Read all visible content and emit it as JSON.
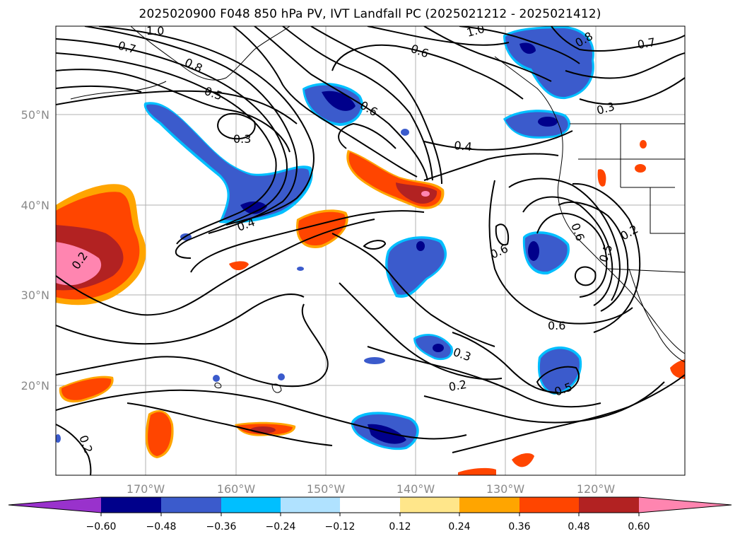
{
  "title": "2025020900 F048 850 hPa PV, IVT Landfall PC (2025021212 - 2025021412)",
  "map": {
    "lon_ticks": [
      "170°W",
      "160°W",
      "150°W",
      "140°W",
      "130°W",
      "120°W"
    ],
    "lat_ticks": [
      "50°N",
      "40°N",
      "30°N",
      "20°N"
    ],
    "contour_labels": [
      "1.0",
      "0.7",
      "0.8",
      "0.5",
      "0.3",
      "0.6",
      "1.0",
      "0.6",
      "0.4",
      "0.8",
      "0.7",
      "0.3",
      "0.4",
      "0.2",
      "0.6",
      "0.2",
      "0.5",
      "0.3",
      "0.2",
      "0.6",
      "0.5",
      "0.2",
      "0.6"
    ]
  },
  "colorbar": {
    "tick_labels": [
      "−0.60",
      "−0.48",
      "−0.36",
      "−0.24",
      "−0.12",
      "0.12",
      "0.24",
      "0.36",
      "0.48",
      "0.60"
    ],
    "colors": [
      "#9932cc",
      "#00008b",
      "#3b5bcc",
      "#00bfff",
      "#b0e2ff",
      "#ffffff",
      "#ffe68a",
      "#ffa500",
      "#ff4500",
      "#b22222",
      "#ff85b0"
    ]
  },
  "colors": {
    "neg_deep": "#00008b",
    "neg_mid": "#3b5bcc",
    "neg_light": "#00bfff",
    "neg_pale": "#b0e2ff",
    "pos_pale": "#ffe68a",
    "pos_mid": "#ffa500",
    "pos_orange": "#ff4500",
    "pos_red": "#b22222",
    "pos_pink": "#ff85b0",
    "grid": "#b0b0b0"
  }
}
